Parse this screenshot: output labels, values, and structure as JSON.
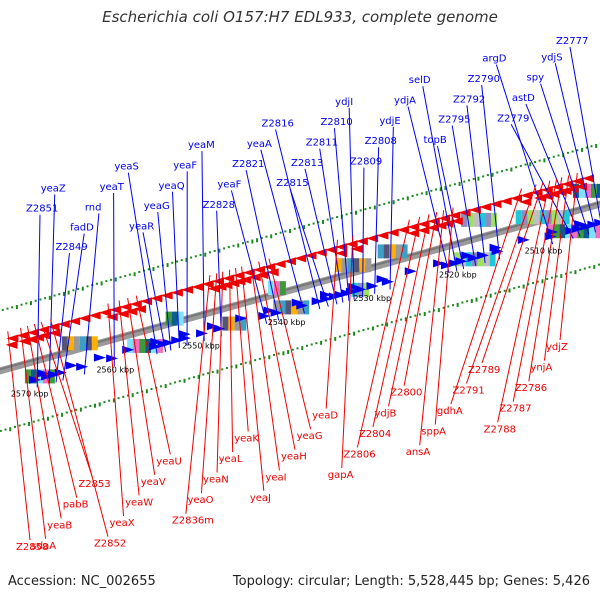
{
  "title": "Escherichia coli O157:H7 EDL933, complete genome",
  "accession": "Accession: NC_002655",
  "topology": "Topology: circular; Length: 5,528,445 bp; Genes: 5,426",
  "colors": {
    "forward": "#0000ee",
    "reverse": "#ee0000",
    "backbone": "#777777",
    "tick": "#1a8a1a"
  },
  "scale": [
    {
      "text": "2510 kbp",
      "pos": 2510
    },
    {
      "text": "2520 kbp",
      "pos": 2520
    },
    {
      "text": "2530 kbp",
      "pos": 2530
    },
    {
      "text": "2540 kbp",
      "pos": 2540
    },
    {
      "text": "2550 kbp",
      "pos": 2550
    },
    {
      "text": "2560 kbp",
      "pos": 2560
    },
    {
      "text": "2570 kbp",
      "pos": 2570
    }
  ],
  "forward_genes": [
    {
      "name": "Z2777",
      "pos": 2504.0
    },
    {
      "name": "ydjS",
      "pos": 2504.8
    },
    {
      "name": "spy",
      "pos": 2505.6
    },
    {
      "name": "astD",
      "pos": 2506.6
    },
    {
      "name": "Z2779",
      "pos": 2507.4
    },
    {
      "name": "argD",
      "pos": 2509.8
    },
    {
      "name": "Z2790",
      "pos": 2516.0
    },
    {
      "name": "Z2792",
      "pos": 2517.7
    },
    {
      "name": "Z2795",
      "pos": 2518.8
    },
    {
      "name": "topB",
      "pos": 2520.2
    },
    {
      "name": "selD",
      "pos": 2521.0
    },
    {
      "name": "ydjA",
      "pos": 2521.9
    },
    {
      "name": "ydjE",
      "pos": 2528.8
    },
    {
      "name": "Z2808",
      "pos": 2530.6
    },
    {
      "name": "Z2809",
      "pos": 2532.0
    },
    {
      "name": "ydjI",
      "pos": 2533.0
    },
    {
      "name": "Z2810",
      "pos": 2533.6
    },
    {
      "name": "Z2811",
      "pos": 2534.3
    },
    {
      "name": "Z2813",
      "pos": 2535.0
    },
    {
      "name": "Z2815",
      "pos": 2536.0
    },
    {
      "name": "Z2816",
      "pos": 2537.0
    },
    {
      "name": "yeaA",
      "pos": 2538.8
    },
    {
      "name": "Z2821",
      "pos": 2541.8
    },
    {
      "name": "yeaF",
      "pos": 2543.2
    },
    {
      "name": "Z2828",
      "pos": 2548.5
    },
    {
      "name": "yeaM",
      "pos": 2550.5
    },
    {
      "name": "yeaF",
      "pos": 2552.5
    },
    {
      "name": "yeaQ",
      "pos": 2553.4
    },
    {
      "name": "yeaG",
      "pos": 2554.4
    },
    {
      "name": "yeaR",
      "pos": 2555.0
    },
    {
      "name": "yeaS",
      "pos": 2556.0
    },
    {
      "name": "yeaT",
      "pos": 2561.0
    },
    {
      "name": "rnd",
      "pos": 2564.5
    },
    {
      "name": "fadD",
      "pos": 2567.0
    },
    {
      "name": "Z2849",
      "pos": 2567.8
    },
    {
      "name": "yeaZ",
      "pos": 2568.6
    },
    {
      "name": "Z2851",
      "pos": 2570.0
    }
  ],
  "reverse_genes": [
    {
      "name": "ydjZ",
      "pos": 2505.0
    },
    {
      "name": "ynjA",
      "pos": 2506.0
    },
    {
      "name": "Z2786",
      "pos": 2506.8
    },
    {
      "name": "Z2787",
      "pos": 2507.4
    },
    {
      "name": "Z2788",
      "pos": 2508.2
    },
    {
      "name": "Z2789",
      "pos": 2509.0
    },
    {
      "name": "Z2791",
      "pos": 2509.8
    },
    {
      "name": "gdhA",
      "pos": 2511.5
    },
    {
      "name": "sppA",
      "pos": 2519.5
    },
    {
      "name": "ansA",
      "pos": 2520.6
    },
    {
      "name": "Z2800",
      "pos": 2521.4
    },
    {
      "name": "ydjB",
      "pos": 2522.3
    },
    {
      "name": "Z2804",
      "pos": 2523.4
    },
    {
      "name": "Z2806",
      "pos": 2524.6
    },
    {
      "name": "gapA",
      "pos": 2531.2
    },
    {
      "name": "yeaD",
      "pos": 2533.0
    },
    {
      "name": "yeaG",
      "pos": 2541.0
    },
    {
      "name": "yeaH",
      "pos": 2542.2
    },
    {
      "name": "yeaI",
      "pos": 2543.1
    },
    {
      "name": "yeaJ",
      "pos": 2544.2
    },
    {
      "name": "yeaK",
      "pos": 2544.9
    },
    {
      "name": "yeaL",
      "pos": 2545.6
    },
    {
      "name": "yeaN",
      "pos": 2546.4
    },
    {
      "name": "yeaO",
      "pos": 2547.1
    },
    {
      "name": "Z2836m",
      "pos": 2547.9
    },
    {
      "name": "yeaU",
      "pos": 2556.5
    },
    {
      "name": "yeaV",
      "pos": 2557.5
    },
    {
      "name": "yeaW",
      "pos": 2558.5
    },
    {
      "name": "yeaX",
      "pos": 2559.8
    },
    {
      "name": "Z2852",
      "pos": 2566.5
    },
    {
      "name": "Z2853",
      "pos": 2567.6
    },
    {
      "name": "pabB",
      "pos": 2568.4
    },
    {
      "name": "yeaB",
      "pos": 2569.2
    },
    {
      "name": "sdaA",
      "pos": 2570.0
    },
    {
      "name": "Z2858",
      "pos": 2571.5
    }
  ]
}
